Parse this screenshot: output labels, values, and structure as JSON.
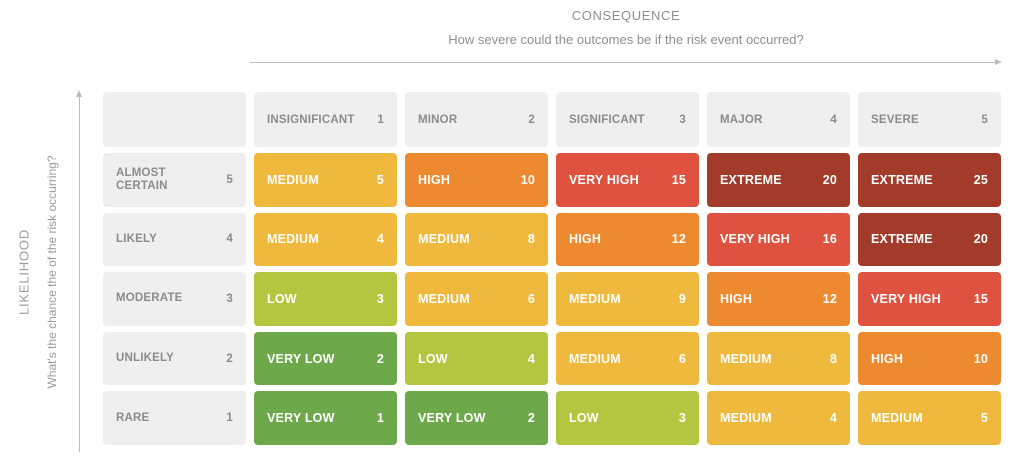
{
  "axes": {
    "consequence": {
      "title": "CONSEQUENCE",
      "subtitle": "How severe could the outcomes be if the risk event occurred?"
    },
    "likelihood": {
      "title": "LIKELIHOOD",
      "subtitle": "What's the chance the of the risk occurring?"
    }
  },
  "colors": {
    "header_bg": "#efefef",
    "header_text": "#8c8c8c",
    "axis_text": "#8f8f8f",
    "arrow": "#bcbcbc",
    "very_low": "#6da94b",
    "low": "#b4c640",
    "medium": "#eeb93d",
    "high": "#ed8a2f",
    "very_high": "#df5240",
    "extreme": "#a33b2b"
  },
  "chart_data": {
    "type": "heatmap",
    "title": "CONSEQUENCE",
    "xlabel": "How severe could the outcomes be if the risk event occurred?",
    "ylabel": "What's the chance the of the risk occurring?",
    "columns": [
      {
        "label": "INSIGNIFICANT",
        "value": "1"
      },
      {
        "label": "MINOR",
        "value": "2"
      },
      {
        "label": "SIGNIFICANT",
        "value": "3"
      },
      {
        "label": "MAJOR",
        "value": "4"
      },
      {
        "label": "SEVERE",
        "value": "5"
      }
    ],
    "rows": [
      {
        "label": "ALMOST CERTAIN",
        "value": "5",
        "cells": [
          {
            "label": "MEDIUM",
            "score": "5",
            "level": "medium"
          },
          {
            "label": "HIGH",
            "score": "10",
            "level": "high"
          },
          {
            "label": "VERY HIGH",
            "score": "15",
            "level": "very_high"
          },
          {
            "label": "EXTREME",
            "score": "20",
            "level": "extreme"
          },
          {
            "label": "EXTREME",
            "score": "25",
            "level": "extreme"
          }
        ]
      },
      {
        "label": "LIKELY",
        "value": "4",
        "cells": [
          {
            "label": "MEDIUM",
            "score": "4",
            "level": "medium"
          },
          {
            "label": "MEDIUM",
            "score": "8",
            "level": "medium"
          },
          {
            "label": "HIGH",
            "score": "12",
            "level": "high"
          },
          {
            "label": "VERY HIGH",
            "score": "16",
            "level": "very_high"
          },
          {
            "label": "EXTREME",
            "score": "20",
            "level": "extreme"
          }
        ]
      },
      {
        "label": "MODERATE",
        "value": "3",
        "cells": [
          {
            "label": "LOW",
            "score": "3",
            "level": "low"
          },
          {
            "label": "MEDIUM",
            "score": "6",
            "level": "medium"
          },
          {
            "label": "MEDIUM",
            "score": "9",
            "level": "medium"
          },
          {
            "label": "HIGH",
            "score": "12",
            "level": "high"
          },
          {
            "label": "VERY HIGH",
            "score": "15",
            "level": "very_high"
          }
        ]
      },
      {
        "label": "UNLIKELY",
        "value": "2",
        "cells": [
          {
            "label": "VERY LOW",
            "score": "2",
            "level": "very_low"
          },
          {
            "label": "LOW",
            "score": "4",
            "level": "low"
          },
          {
            "label": "MEDIUM",
            "score": "6",
            "level": "medium"
          },
          {
            "label": "MEDIUM",
            "score": "8",
            "level": "medium"
          },
          {
            "label": "HIGH",
            "score": "10",
            "level": "high"
          }
        ]
      },
      {
        "label": "RARE",
        "value": "1",
        "cells": [
          {
            "label": "VERY LOW",
            "score": "1",
            "level": "very_low"
          },
          {
            "label": "VERY LOW",
            "score": "2",
            "level": "very_low"
          },
          {
            "label": "LOW",
            "score": "3",
            "level": "low"
          },
          {
            "label": "MEDIUM",
            "score": "4",
            "level": "medium"
          },
          {
            "label": "MEDIUM",
            "score": "5",
            "level": "medium"
          }
        ]
      }
    ]
  }
}
